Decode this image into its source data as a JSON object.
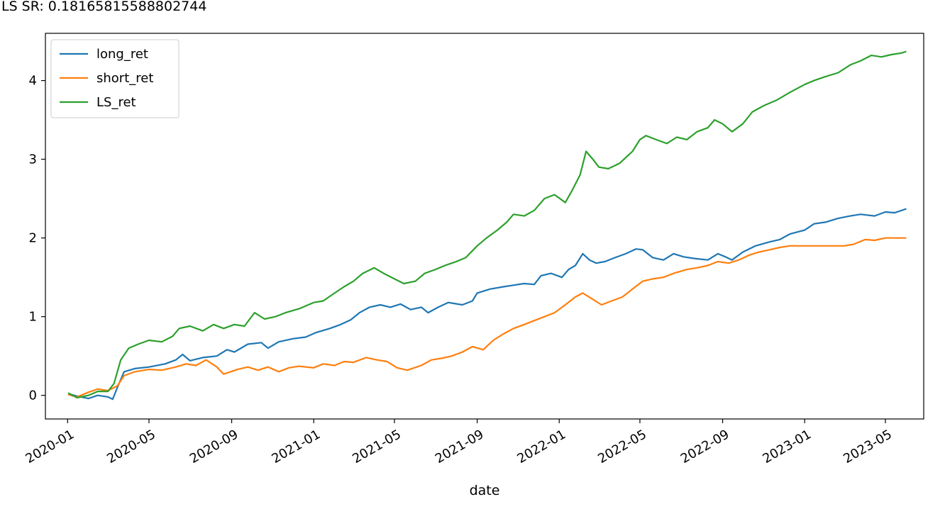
{
  "output": {
    "sr_line": "LS SR: 0.18165815588802744"
  },
  "chart_data": {
    "type": "line",
    "title": "",
    "xlabel": "date",
    "ylabel": "",
    "xlim": [
      "2019-11-29",
      "2023-06-27"
    ],
    "ylim": [
      -0.3,
      4.6
    ],
    "x_ticks": [
      "2020-01",
      "2020-05",
      "2020-09",
      "2021-01",
      "2021-05",
      "2021-09",
      "2022-01",
      "2022-05",
      "2022-09",
      "2023-01",
      "2023-05"
    ],
    "y_ticks": [
      0,
      1,
      2,
      3,
      4
    ],
    "grid": false,
    "legend_position": "top-left",
    "series": [
      {
        "name": "long_ret",
        "color": "#1f77b4",
        "points": [
          [
            "2020-01-02",
            0.02
          ],
          [
            "2020-01-15",
            -0.01
          ],
          [
            "2020-02-01",
            -0.04
          ],
          [
            "2020-02-15",
            0.0
          ],
          [
            "2020-03-01",
            -0.02
          ],
          [
            "2020-03-08",
            -0.05
          ],
          [
            "2020-03-15",
            0.1
          ],
          [
            "2020-03-25",
            0.3
          ],
          [
            "2020-04-10",
            0.34
          ],
          [
            "2020-05-01",
            0.36
          ],
          [
            "2020-05-25",
            0.4
          ],
          [
            "2020-06-10",
            0.45
          ],
          [
            "2020-06-20",
            0.52
          ],
          [
            "2020-07-01",
            0.44
          ],
          [
            "2020-07-20",
            0.48
          ],
          [
            "2020-08-10",
            0.5
          ],
          [
            "2020-08-25",
            0.58
          ],
          [
            "2020-09-05",
            0.55
          ],
          [
            "2020-09-25",
            0.65
          ],
          [
            "2020-10-15",
            0.67
          ],
          [
            "2020-10-25",
            0.6
          ],
          [
            "2020-11-10",
            0.68
          ],
          [
            "2020-12-01",
            0.72
          ],
          [
            "2020-12-20",
            0.74
          ],
          [
            "2021-01-05",
            0.8
          ],
          [
            "2021-01-25",
            0.85
          ],
          [
            "2021-02-10",
            0.9
          ],
          [
            "2021-02-25",
            0.96
          ],
          [
            "2021-03-10",
            1.05
          ],
          [
            "2021-03-25",
            1.12
          ],
          [
            "2021-04-10",
            1.15
          ],
          [
            "2021-04-25",
            1.12
          ],
          [
            "2021-05-10",
            1.16
          ],
          [
            "2021-05-25",
            1.09
          ],
          [
            "2021-06-10",
            1.12
          ],
          [
            "2021-06-20",
            1.05
          ],
          [
            "2021-07-05",
            1.12
          ],
          [
            "2021-07-20",
            1.18
          ],
          [
            "2021-08-10",
            1.15
          ],
          [
            "2021-08-25",
            1.2
          ],
          [
            "2021-09-01",
            1.3
          ],
          [
            "2021-09-20",
            1.35
          ],
          [
            "2021-10-10",
            1.38
          ],
          [
            "2021-10-25",
            1.4
          ],
          [
            "2021-11-10",
            1.42
          ],
          [
            "2021-11-25",
            1.41
          ],
          [
            "2021-12-05",
            1.52
          ],
          [
            "2021-12-20",
            1.55
          ],
          [
            "2022-01-05",
            1.5
          ],
          [
            "2022-01-15",
            1.6
          ],
          [
            "2022-01-25",
            1.65
          ],
          [
            "2022-02-05",
            1.8
          ],
          [
            "2022-02-15",
            1.72
          ],
          [
            "2022-02-25",
            1.68
          ],
          [
            "2022-03-10",
            1.7
          ],
          [
            "2022-03-25",
            1.75
          ],
          [
            "2022-04-10",
            1.8
          ],
          [
            "2022-04-25",
            1.86
          ],
          [
            "2022-05-05",
            1.85
          ],
          [
            "2022-05-20",
            1.75
          ],
          [
            "2022-06-05",
            1.72
          ],
          [
            "2022-06-20",
            1.8
          ],
          [
            "2022-07-05",
            1.76
          ],
          [
            "2022-07-20",
            1.74
          ],
          [
            "2022-08-10",
            1.72
          ],
          [
            "2022-08-25",
            1.8
          ],
          [
            "2022-09-05",
            1.76
          ],
          [
            "2022-09-15",
            1.72
          ],
          [
            "2022-10-01",
            1.82
          ],
          [
            "2022-10-20",
            1.9
          ],
          [
            "2022-11-10",
            1.95
          ],
          [
            "2022-11-25",
            1.98
          ],
          [
            "2022-12-10",
            2.05
          ],
          [
            "2023-01-01",
            2.1
          ],
          [
            "2023-01-15",
            2.18
          ],
          [
            "2023-02-01",
            2.2
          ],
          [
            "2023-02-20",
            2.25
          ],
          [
            "2023-03-10",
            2.28
          ],
          [
            "2023-03-25",
            2.3
          ],
          [
            "2023-04-15",
            2.28
          ],
          [
            "2023-05-01",
            2.33
          ],
          [
            "2023-05-15",
            2.32
          ],
          [
            "2023-06-01",
            2.37
          ]
        ]
      },
      {
        "name": "short_ret",
        "color": "#ff7f0e",
        "points": [
          [
            "2020-01-02",
            0.01
          ],
          [
            "2020-01-15",
            -0.02
          ],
          [
            "2020-02-01",
            0.04
          ],
          [
            "2020-02-15",
            0.08
          ],
          [
            "2020-03-01",
            0.06
          ],
          [
            "2020-03-15",
            0.12
          ],
          [
            "2020-03-25",
            0.25
          ],
          [
            "2020-04-10",
            0.3
          ],
          [
            "2020-05-01",
            0.33
          ],
          [
            "2020-05-20",
            0.32
          ],
          [
            "2020-06-10",
            0.36
          ],
          [
            "2020-06-25",
            0.4
          ],
          [
            "2020-07-10",
            0.38
          ],
          [
            "2020-07-25",
            0.45
          ],
          [
            "2020-08-10",
            0.36
          ],
          [
            "2020-08-20",
            0.27
          ],
          [
            "2020-09-10",
            0.33
          ],
          [
            "2020-09-25",
            0.36
          ],
          [
            "2020-10-10",
            0.32
          ],
          [
            "2020-10-25",
            0.36
          ],
          [
            "2020-11-10",
            0.3
          ],
          [
            "2020-11-25",
            0.35
          ],
          [
            "2020-12-10",
            0.37
          ],
          [
            "2021-01-01",
            0.35
          ],
          [
            "2021-01-15",
            0.4
          ],
          [
            "2021-02-01",
            0.38
          ],
          [
            "2021-02-15",
            0.43
          ],
          [
            "2021-03-01",
            0.42
          ],
          [
            "2021-03-20",
            0.48
          ],
          [
            "2021-04-05",
            0.45
          ],
          [
            "2021-04-20",
            0.43
          ],
          [
            "2021-05-05",
            0.35
          ],
          [
            "2021-05-20",
            0.32
          ],
          [
            "2021-06-10",
            0.38
          ],
          [
            "2021-06-25",
            0.45
          ],
          [
            "2021-07-10",
            0.47
          ],
          [
            "2021-07-25",
            0.5
          ],
          [
            "2021-08-10",
            0.55
          ],
          [
            "2021-08-25",
            0.62
          ],
          [
            "2021-09-10",
            0.58
          ],
          [
            "2021-09-25",
            0.7
          ],
          [
            "2021-10-10",
            0.78
          ],
          [
            "2021-10-25",
            0.85
          ],
          [
            "2021-11-10",
            0.9
          ],
          [
            "2021-11-25",
            0.95
          ],
          [
            "2021-12-10",
            1.0
          ],
          [
            "2021-12-25",
            1.05
          ],
          [
            "2022-01-10",
            1.15
          ],
          [
            "2022-01-25",
            1.25
          ],
          [
            "2022-02-05",
            1.3
          ],
          [
            "2022-02-20",
            1.22
          ],
          [
            "2022-03-05",
            1.15
          ],
          [
            "2022-03-20",
            1.2
          ],
          [
            "2022-04-05",
            1.25
          ],
          [
            "2022-04-20",
            1.35
          ],
          [
            "2022-05-05",
            1.45
          ],
          [
            "2022-05-20",
            1.48
          ],
          [
            "2022-06-05",
            1.5
          ],
          [
            "2022-06-20",
            1.55
          ],
          [
            "2022-07-10",
            1.6
          ],
          [
            "2022-07-25",
            1.62
          ],
          [
            "2022-08-10",
            1.65
          ],
          [
            "2022-08-25",
            1.7
          ],
          [
            "2022-09-10",
            1.68
          ],
          [
            "2022-09-25",
            1.72
          ],
          [
            "2022-10-10",
            1.78
          ],
          [
            "2022-10-25",
            1.82
          ],
          [
            "2022-11-10",
            1.85
          ],
          [
            "2022-11-25",
            1.88
          ],
          [
            "2022-12-10",
            1.9
          ],
          [
            "2023-01-01",
            1.9
          ],
          [
            "2023-02-01",
            1.9
          ],
          [
            "2023-03-01",
            1.9
          ],
          [
            "2023-03-15",
            1.92
          ],
          [
            "2023-04-01",
            1.98
          ],
          [
            "2023-04-15",
            1.97
          ],
          [
            "2023-05-01",
            2.0
          ],
          [
            "2023-06-01",
            2.0
          ]
        ]
      },
      {
        "name": "LS_ret",
        "color": "#2ca02c",
        "points": [
          [
            "2020-01-02",
            0.03
          ],
          [
            "2020-01-15",
            -0.03
          ],
          [
            "2020-02-01",
            0.0
          ],
          [
            "2020-02-15",
            0.05
          ],
          [
            "2020-03-01",
            0.05
          ],
          [
            "2020-03-10",
            0.15
          ],
          [
            "2020-03-20",
            0.45
          ],
          [
            "2020-04-01",
            0.6
          ],
          [
            "2020-04-15",
            0.65
          ],
          [
            "2020-05-01",
            0.7
          ],
          [
            "2020-05-20",
            0.68
          ],
          [
            "2020-06-05",
            0.75
          ],
          [
            "2020-06-15",
            0.85
          ],
          [
            "2020-07-01",
            0.88
          ],
          [
            "2020-07-20",
            0.82
          ],
          [
            "2020-08-05",
            0.9
          ],
          [
            "2020-08-20",
            0.85
          ],
          [
            "2020-09-05",
            0.9
          ],
          [
            "2020-09-20",
            0.88
          ],
          [
            "2020-10-05",
            1.05
          ],
          [
            "2020-10-20",
            0.97
          ],
          [
            "2020-11-05",
            1.0
          ],
          [
            "2020-11-20",
            1.05
          ],
          [
            "2020-12-10",
            1.1
          ],
          [
            "2021-01-01",
            1.18
          ],
          [
            "2021-01-15",
            1.2
          ],
          [
            "2021-02-01",
            1.3
          ],
          [
            "2021-02-15",
            1.38
          ],
          [
            "2021-03-01",
            1.45
          ],
          [
            "2021-03-15",
            1.55
          ],
          [
            "2021-04-01",
            1.62
          ],
          [
            "2021-04-15",
            1.55
          ],
          [
            "2021-05-01",
            1.48
          ],
          [
            "2021-05-15",
            1.42
          ],
          [
            "2021-06-01",
            1.45
          ],
          [
            "2021-06-15",
            1.55
          ],
          [
            "2021-07-01",
            1.6
          ],
          [
            "2021-07-15",
            1.65
          ],
          [
            "2021-08-01",
            1.7
          ],
          [
            "2021-08-15",
            1.75
          ],
          [
            "2021-09-01",
            1.9
          ],
          [
            "2021-09-15",
            2.0
          ],
          [
            "2021-10-01",
            2.1
          ],
          [
            "2021-10-15",
            2.2
          ],
          [
            "2021-10-25",
            2.3
          ],
          [
            "2021-11-10",
            2.28
          ],
          [
            "2021-11-25",
            2.35
          ],
          [
            "2021-12-10",
            2.5
          ],
          [
            "2021-12-25",
            2.55
          ],
          [
            "2022-01-10",
            2.45
          ],
          [
            "2022-01-20",
            2.6
          ],
          [
            "2022-02-01",
            2.8
          ],
          [
            "2022-02-10",
            3.1
          ],
          [
            "2022-02-20",
            3.0
          ],
          [
            "2022-03-01",
            2.9
          ],
          [
            "2022-03-15",
            2.88
          ],
          [
            "2022-04-01",
            2.95
          ],
          [
            "2022-04-20",
            3.1
          ],
          [
            "2022-05-01",
            3.25
          ],
          [
            "2022-05-10",
            3.3
          ],
          [
            "2022-05-25",
            3.25
          ],
          [
            "2022-06-10",
            3.2
          ],
          [
            "2022-06-25",
            3.28
          ],
          [
            "2022-07-10",
            3.25
          ],
          [
            "2022-07-25",
            3.35
          ],
          [
            "2022-08-10",
            3.4
          ],
          [
            "2022-08-20",
            3.5
          ],
          [
            "2022-09-01",
            3.45
          ],
          [
            "2022-09-15",
            3.35
          ],
          [
            "2022-10-01",
            3.45
          ],
          [
            "2022-10-15",
            3.6
          ],
          [
            "2022-11-01",
            3.68
          ],
          [
            "2022-11-20",
            3.75
          ],
          [
            "2022-12-10",
            3.85
          ],
          [
            "2023-01-01",
            3.95
          ],
          [
            "2023-01-15",
            4.0
          ],
          [
            "2023-02-01",
            4.05
          ],
          [
            "2023-02-20",
            4.1
          ],
          [
            "2023-03-10",
            4.2
          ],
          [
            "2023-03-25",
            4.25
          ],
          [
            "2023-04-10",
            4.32
          ],
          [
            "2023-04-25",
            4.3
          ],
          [
            "2023-05-10",
            4.33
          ],
          [
            "2023-05-25",
            4.35
          ],
          [
            "2023-06-01",
            4.37
          ]
        ]
      }
    ]
  }
}
